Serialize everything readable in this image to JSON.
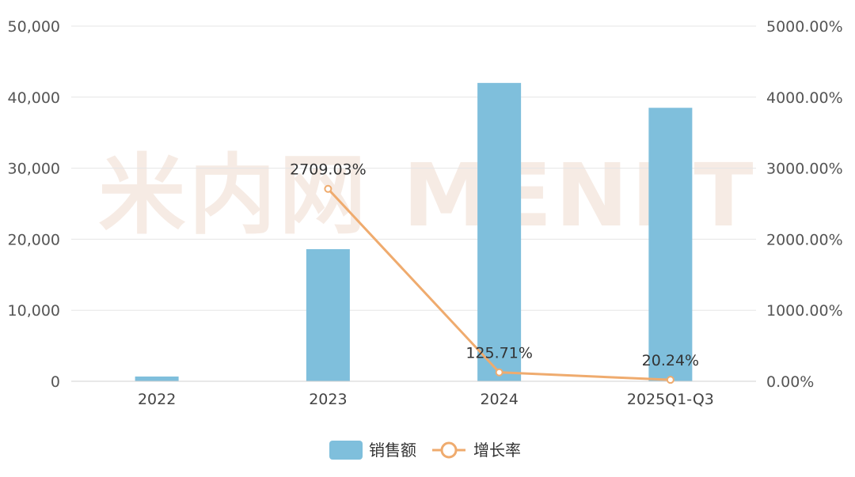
{
  "chart_data": {
    "type": "bar",
    "categories": [
      "2022",
      "2023",
      "2024",
      "2025Q1-Q3"
    ],
    "series": [
      {
        "name": "销售额",
        "type": "bar",
        "axis": "left",
        "values": [
          670,
          18600,
          42000,
          38500
        ],
        "color": "#7fbfdc"
      },
      {
        "name": "增长率",
        "type": "line",
        "axis": "right",
        "values": [
          null,
          2709.03,
          125.71,
          20.24
        ],
        "labels": [
          "",
          "2709.03%",
          "125.71%",
          "20.24%"
        ],
        "color": "#efab6e"
      }
    ],
    "y_left": {
      "min": 0,
      "max": 50000,
      "ticks": [
        "0",
        "10,000",
        "20,000",
        "30,000",
        "40,000",
        "50,000"
      ],
      "tick_values": [
        0,
        10000,
        20000,
        30000,
        40000,
        50000
      ]
    },
    "y_right": {
      "min": 0,
      "max": 5000,
      "ticks": [
        "0.00%",
        "1000.00%",
        "2000.00%",
        "3000.00%",
        "4000.00%",
        "5000.00%"
      ],
      "tick_values": [
        0,
        1000,
        2000,
        3000,
        4000,
        5000
      ]
    },
    "grid": true,
    "legend_position": "bottom-center",
    "watermark": "米内网 MENET"
  }
}
